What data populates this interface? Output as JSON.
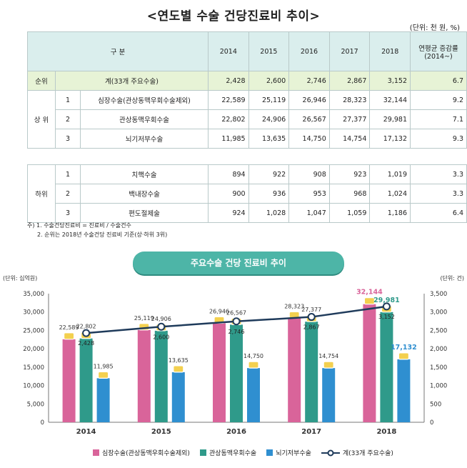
{
  "title": "<연도별 수술 건당진료비 추이>",
  "unit": "(단위: 천 원, %)",
  "table": {
    "header": {
      "category": "구 분",
      "years": [
        "2014",
        "2015",
        "2016",
        "2017",
        "2018"
      ],
      "growth": "연평균 증감률 (2014~)"
    },
    "total": {
      "rank": "순위",
      "label": "계(33개 주요수술)",
      "values": [
        "2,428",
        "2,600",
        "2,746",
        "2,867",
        "3,152"
      ],
      "growth": "6.7"
    },
    "upper_label": "상 위",
    "upper": [
      {
        "rank": "1",
        "label": "심장수술(관상동맥우회수술제외)",
        "values": [
          "22,589",
          "25,119",
          "26,946",
          "28,323",
          "32,144"
        ],
        "growth": "9.2"
      },
      {
        "rank": "2",
        "label": "관상동맥우회수술",
        "values": [
          "22,802",
          "24,906",
          "26,567",
          "27,377",
          "29,981"
        ],
        "growth": "7.1"
      },
      {
        "rank": "3",
        "label": "뇌기저부수술",
        "values": [
          "11,985",
          "13,635",
          "14,750",
          "14,754",
          "17,132"
        ],
        "growth": "9.3"
      }
    ],
    "lower_label": "하위",
    "lower": [
      {
        "rank": "1",
        "label": "치핵수술",
        "values": [
          "894",
          "922",
          "908",
          "923",
          "1,019"
        ],
        "growth": "3.3"
      },
      {
        "rank": "2",
        "label": "백내장수술",
        "values": [
          "900",
          "936",
          "953",
          "968",
          "1,024"
        ],
        "growth": "3.3"
      },
      {
        "rank": "3",
        "label": "편도절제술",
        "values": [
          "924",
          "1,028",
          "1,047",
          "1,059",
          "1,186"
        ],
        "growth": "6.4"
      }
    ]
  },
  "notes": [
    "주) 1. 수술건당진료비 = 진료비 / 수술건수",
    "2. 순위는 2018년 수술건당 진료비 기준(상·하위 3위)"
  ],
  "banner": "주요수술 건당 진료비 추이",
  "colors": {
    "cardiac": "#d9649a",
    "cabg": "#2f9a8a",
    "skull": "#2f8fd0",
    "line": "#1f3b5b",
    "header_bg": "#daeeed",
    "total_bg": "#e7f3d6",
    "banner": "#4db5a7"
  },
  "chart_data": {
    "type": "bar",
    "categories": [
      "2014",
      "2015",
      "2016",
      "2017",
      "2018"
    ],
    "left_unit": "(단위: 십억원)",
    "right_unit": "(단위: 건)",
    "ylim": [
      0,
      35000
    ],
    "yticks": [
      "0",
      "5,000",
      "10,000",
      "15,000",
      "20,000",
      "25,000",
      "30,000",
      "35,000"
    ],
    "y2lim": [
      0,
      3500
    ],
    "y2ticks": [
      "0",
      "500",
      "1,000",
      "1,500",
      "2,000",
      "2,500",
      "3,000",
      "3,500"
    ],
    "series": [
      {
        "name": "심장수술(관상동맥우회수술제외)",
        "values": [
          22589,
          25119,
          26946,
          28323,
          32144
        ],
        "labels": [
          "22,589",
          "25,119",
          "26,946",
          "28,323",
          "32,144"
        ]
      },
      {
        "name": "관상동맥우회수술",
        "values": [
          22802,
          24906,
          26567,
          27377,
          29981
        ],
        "labels": [
          "22,802",
          "24,906",
          "26,567",
          "27,377",
          "29,981"
        ]
      },
      {
        "name": "뇌기저부수술",
        "values": [
          11985,
          13635,
          14750,
          14754,
          17132
        ],
        "labels": [
          "11,985",
          "13,635",
          "14,750",
          "14,754",
          "17,132"
        ]
      }
    ],
    "line": {
      "name": "계(33개 주요수술)",
      "values": [
        2428,
        2600,
        2746,
        2867,
        3152
      ],
      "labels": [
        "2,428",
        "2,600",
        "2,746",
        "2,867",
        "3,152"
      ],
      "axis": "right"
    }
  }
}
